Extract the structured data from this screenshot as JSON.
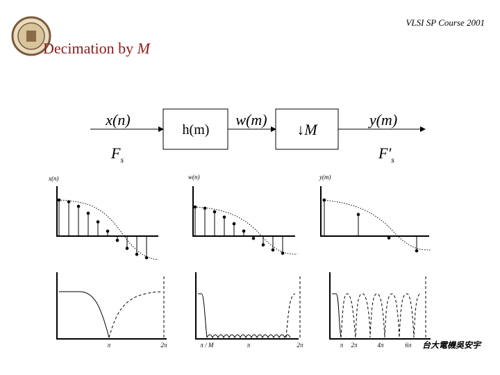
{
  "header": {
    "course": "VLSI SP Course 2001",
    "title": "Decimation by ",
    "title_var": "M"
  },
  "diagram": {
    "input": "x(n)",
    "filter": "h(m)",
    "middle": "w(m)",
    "decimator": "↓M",
    "output": "y(m)",
    "input_rate": "F",
    "input_rate_sub": "s",
    "output_rate": "F′",
    "output_rate_sub": "s"
  },
  "plots": {
    "labels": [
      "x(n)",
      "w(n)",
      "y(m)"
    ],
    "spectrum_ticks": [
      [
        "π",
        "2π"
      ],
      [
        "π / M",
        "π",
        "2π"
      ],
      [
        "π",
        "2π",
        "4π",
        "6π"
      ]
    ]
  },
  "footer": "台大電機吳安宇"
}
